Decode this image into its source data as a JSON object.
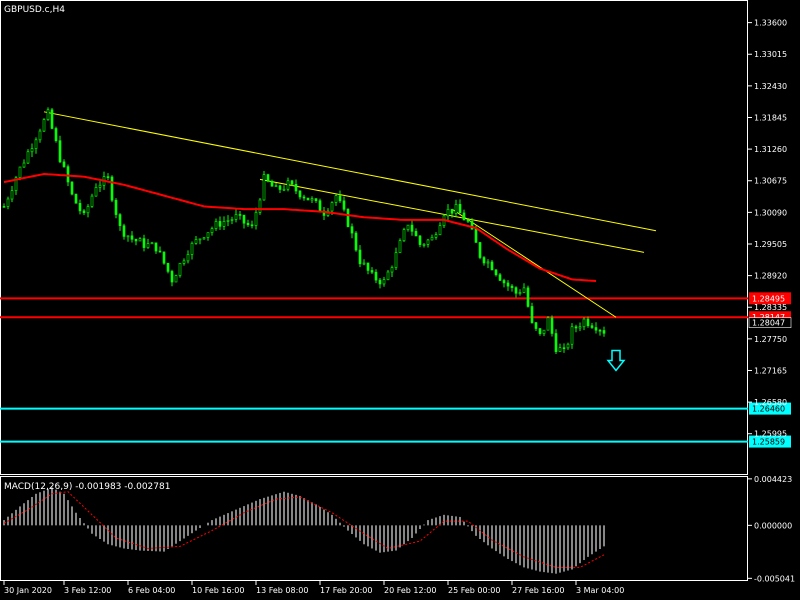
{
  "symbol_label": "GBPUSD.c,H4",
  "colors": {
    "background": "#000000",
    "frame": "#ffffff",
    "candle": "#00ff00",
    "ma": "#ff0000",
    "trendline": "#ffff00",
    "support": "#00ffff",
    "resistance": "#ff0000",
    "macd_hist": "#c0c0c0",
    "macd_signal": "#ff0000",
    "arrow": "#00ffff"
  },
  "chart_data": [
    {
      "type": "candlestick",
      "title": "GBPUSD.c,H4",
      "ylim": [
        1.2525,
        1.34
      ],
      "y_ticks": [
        "1.33600",
        "1.33015",
        "1.32430",
        "1.31845",
        "1.31260",
        "1.30675",
        "1.30090",
        "1.29505",
        "1.28920",
        "1.28335",
        "1.27750",
        "1.27165",
        "1.26580",
        "1.25995"
      ],
      "x_ticks": [
        {
          "label": "30 Jan 2020",
          "index": 0
        },
        {
          "label": "3 Feb 12:00",
          "index": 15
        },
        {
          "label": "6 Feb 04:00",
          "index": 31
        },
        {
          "label": "10 Feb 16:00",
          "index": 47
        },
        {
          "label": "13 Feb 08:00",
          "index": 63
        },
        {
          "label": "17 Feb 20:00",
          "index": 79
        },
        {
          "label": "20 Feb 12:00",
          "index": 95
        },
        {
          "label": "25 Feb 00:00",
          "index": 111
        },
        {
          "label": "27 Feb 16:00",
          "index": 127
        },
        {
          "label": "3 Mar 04:00",
          "index": 143
        }
      ],
      "close_anchors": [
        [
          0,
          1.302
        ],
        [
          3,
          1.3075
        ],
        [
          6,
          1.312
        ],
        [
          9,
          1.3165
        ],
        [
          11,
          1.319
        ],
        [
          14,
          1.311
        ],
        [
          17,
          1.304
        ],
        [
          20,
          1.3
        ],
        [
          23,
          1.306
        ],
        [
          26,
          1.307
        ],
        [
          29,
          1.298
        ],
        [
          32,
          1.296
        ],
        [
          35,
          1.295
        ],
        [
          38,
          1.2945
        ],
        [
          42,
          1.2885
        ],
        [
          46,
          1.294
        ],
        [
          50,
          1.297
        ],
        [
          54,
          1.299
        ],
        [
          58,
          1.3
        ],
        [
          62,
          1.298
        ],
        [
          65,
          1.307
        ],
        [
          68,
          1.305
        ],
        [
          71,
          1.306
        ],
        [
          74,
          1.3045
        ],
        [
          77,
          1.303
        ],
        [
          80,
          1.301
        ],
        [
          83,
          1.304
        ],
        [
          86,
          1.299
        ],
        [
          89,
          1.292
        ],
        [
          92,
          1.289
        ],
        [
          95,
          1.288
        ],
        [
          98,
          1.293
        ],
        [
          101,
          1.299
        ],
        [
          104,
          1.295
        ],
        [
          107,
          1.296
        ],
        [
          110,
          1.301
        ],
        [
          113,
          1.3015
        ],
        [
          116,
          1.299
        ],
        [
          119,
          1.293
        ],
        [
          122,
          1.291
        ],
        [
          125,
          1.288
        ],
        [
          128,
          1.286
        ],
        [
          130,
          1.287
        ],
        [
          132,
          1.28
        ],
        [
          134,
          1.278
        ],
        [
          136,
          1.281
        ],
        [
          138,
          1.276
        ],
        [
          140,
          1.275
        ],
        [
          142,
          1.279
        ],
        [
          145,
          1.281
        ],
        [
          148,
          1.28
        ],
        [
          150,
          1.279
        ]
      ],
      "ma_anchors": [
        [
          0,
          1.3065
        ],
        [
          10,
          1.308
        ],
        [
          20,
          1.3075
        ],
        [
          30,
          1.306
        ],
        [
          40,
          1.304
        ],
        [
          50,
          1.302
        ],
        [
          60,
          1.3015
        ],
        [
          70,
          1.3015
        ],
        [
          80,
          1.301
        ],
        [
          90,
          1.3
        ],
        [
          100,
          1.2995
        ],
        [
          110,
          1.2995
        ],
        [
          118,
          1.298
        ],
        [
          126,
          1.294
        ],
        [
          134,
          1.2905
        ],
        [
          142,
          1.2885
        ],
        [
          148,
          1.2882
        ]
      ],
      "trendlines": [
        {
          "from": [
            10,
            1.3195
          ],
          "to": [
            163,
            1.2975
          ]
        },
        {
          "from": [
            64,
            1.307
          ],
          "to": [
            160,
            1.2935
          ]
        },
        {
          "from": [
            112,
            1.3015
          ],
          "to": [
            153,
            1.2815
          ]
        }
      ],
      "horizontal_lines": [
        {
          "name": "resistance-1",
          "value": 1.285,
          "label": "1.28495",
          "color": "#ff0000"
        },
        {
          "name": "resistance-2",
          "value": 1.2815,
          "label": "1.28147",
          "color": "#ff0000"
        },
        {
          "name": "support-1",
          "value": 1.2646,
          "label": "1.26460",
          "color": "#00ffff"
        },
        {
          "name": "support-2",
          "value": 1.2585,
          "label": "1.25859",
          "color": "#00ffff"
        }
      ],
      "current_price": {
        "value": 1.2805,
        "label": "1.28047"
      },
      "arrow_marker": {
        "index": 153,
        "value": 1.2735,
        "direction": "down"
      }
    },
    {
      "type": "bar",
      "title": "MACD(12,26,9) -0.001983 -0.002781",
      "ylim": [
        -0.0052,
        0.0046
      ],
      "y_ticks": [
        "0.004423",
        "0.000000",
        "-0.005041"
      ],
      "hist_anchors": [
        [
          0,
          0.0005
        ],
        [
          4,
          0.0018
        ],
        [
          8,
          0.003
        ],
        [
          12,
          0.0036
        ],
        [
          15,
          0.003
        ],
        [
          18,
          0.0012
        ],
        [
          22,
          -0.0008
        ],
        [
          26,
          -0.0018
        ],
        [
          30,
          -0.0022
        ],
        [
          34,
          -0.0024
        ],
        [
          40,
          -0.0025
        ],
        [
          46,
          -0.001
        ],
        [
          52,
          0.0005
        ],
        [
          58,
          0.0015
        ],
        [
          64,
          0.0025
        ],
        [
          70,
          0.0032
        ],
        [
          74,
          0.0028
        ],
        [
          78,
          0.002
        ],
        [
          82,
          0.001
        ],
        [
          86,
          -0.0005
        ],
        [
          90,
          -0.0018
        ],
        [
          94,
          -0.0026
        ],
        [
          98,
          -0.0024
        ],
        [
          102,
          -0.0012
        ],
        [
          106,
          0.0005
        ],
        [
          110,
          0.001
        ],
        [
          114,
          0.0008
        ],
        [
          118,
          -0.001
        ],
        [
          122,
          -0.0022
        ],
        [
          126,
          -0.0032
        ],
        [
          130,
          -0.004
        ],
        [
          134,
          -0.0044
        ],
        [
          138,
          -0.0046
        ],
        [
          142,
          -0.0042
        ],
        [
          146,
          -0.003
        ],
        [
          150,
          -0.002
        ]
      ],
      "signal_anchors": [
        [
          0,
          0.0002
        ],
        [
          6,
          0.0015
        ],
        [
          12,
          0.003
        ],
        [
          16,
          0.0032
        ],
        [
          22,
          0.001
        ],
        [
          28,
          -0.0012
        ],
        [
          36,
          -0.0022
        ],
        [
          44,
          -0.002
        ],
        [
          52,
          -0.0005
        ],
        [
          60,
          0.0012
        ],
        [
          68,
          0.0025
        ],
        [
          74,
          0.0027
        ],
        [
          82,
          0.0012
        ],
        [
          90,
          -0.0008
        ],
        [
          96,
          -0.0022
        ],
        [
          104,
          -0.0015
        ],
        [
          110,
          0.0004
        ],
        [
          116,
          0.0004
        ],
        [
          122,
          -0.0014
        ],
        [
          130,
          -0.003
        ],
        [
          138,
          -0.004
        ],
        [
          144,
          -0.004
        ],
        [
          150,
          -0.0028
        ]
      ]
    }
  ]
}
